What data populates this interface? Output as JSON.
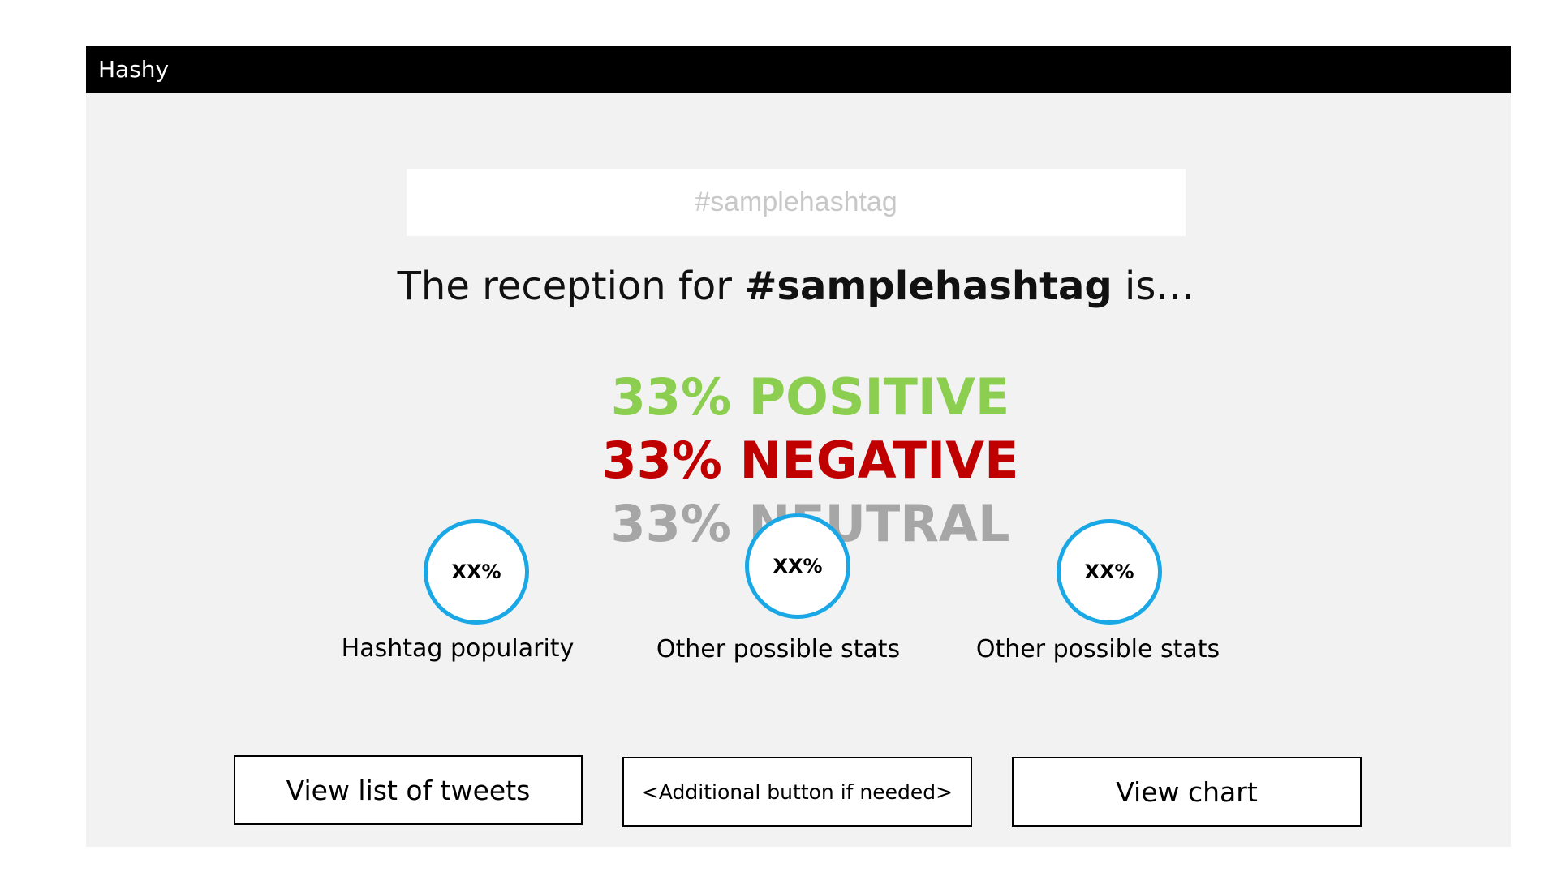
{
  "app": {
    "title": "Hashy"
  },
  "search": {
    "placeholder": "#samplehashtag"
  },
  "reception": {
    "prefix": "The reception for ",
    "hashtag": "#samplehashtag",
    "suffix": " is…"
  },
  "sentiment": {
    "positive": {
      "text": "33% POSITIVE",
      "percent": 33,
      "color": "#8ccf50"
    },
    "negative": {
      "text": "33% NEGATIVE",
      "percent": 33,
      "color": "#c00000"
    },
    "neutral": {
      "text": "33% NEUTRAL",
      "percent": 33,
      "color": "#a6a6a6"
    }
  },
  "stats": [
    {
      "value": "XX%",
      "label": "Hashtag popularity"
    },
    {
      "value": "XX%",
      "label": "Other possible stats"
    },
    {
      "value": "XX%",
      "label": "Other possible stats"
    }
  ],
  "buttons": {
    "tweets": "View list of tweets",
    "additional": "<Additional button if needed>",
    "chart": "View chart"
  },
  "colors": {
    "title_bar": "#000000",
    "panel_background": "#f2f2f2",
    "circle_accent": "#1aa7e6"
  }
}
